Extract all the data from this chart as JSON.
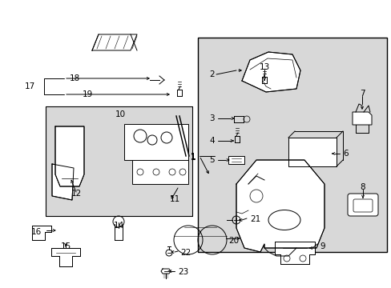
{
  "bg_color": "#ffffff",
  "fig_width": 4.89,
  "fig_height": 3.6,
  "dpi": 100,
  "gray_fill": "#d8d8d8",
  "line_color": "#000000",
  "lw": 0.7
}
